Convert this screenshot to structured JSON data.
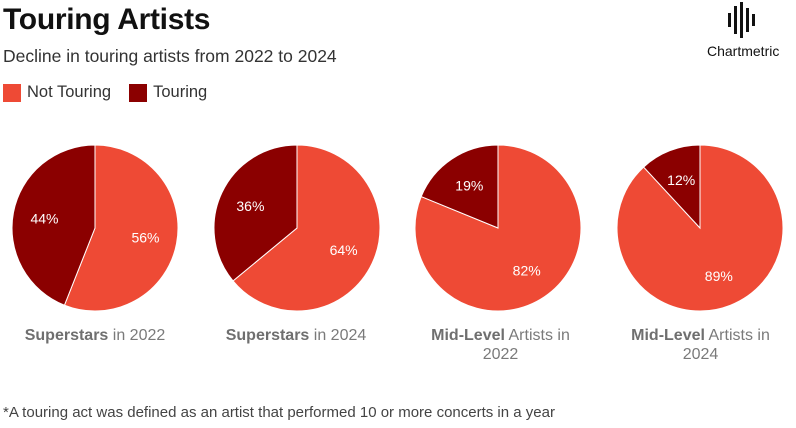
{
  "header": {
    "title": "Touring Artists",
    "subtitle": "Decline in touring artists from 2022 to 2024"
  },
  "legend": [
    {
      "label": "Not Touring",
      "color": "#ee4a35"
    },
    {
      "label": "Touring",
      "color": "#8b0000"
    }
  ],
  "logo": {
    "text": "Chartmetric",
    "icon": "waveform-icon"
  },
  "chart_data": [
    {
      "type": "pie",
      "caption_bold": "Superstars",
      "caption_rest": " in 2022",
      "slices": [
        {
          "label": "Not Touring",
          "value": 56,
          "text": "56%"
        },
        {
          "label": "Touring",
          "value": 44,
          "text": "44%"
        }
      ]
    },
    {
      "type": "pie",
      "caption_bold": "Superstars",
      "caption_rest": " in 2024",
      "slices": [
        {
          "label": "Not Touring",
          "value": 64,
          "text": "64%"
        },
        {
          "label": "Touring",
          "value": 36,
          "text": "36%"
        }
      ]
    },
    {
      "type": "pie",
      "caption_bold": "Mid-Level",
      "caption_rest": " Artists in 2022",
      "slices": [
        {
          "label": "Not Touring",
          "value": 82,
          "text": "82%"
        },
        {
          "label": "Touring",
          "value": 19,
          "text": "19%"
        }
      ]
    },
    {
      "type": "pie",
      "caption_bold": "Mid-Level",
      "caption_rest": " Artists in 2024",
      "slices": [
        {
          "label": "Not Touring",
          "value": 89,
          "text": "89%"
        },
        {
          "label": "Touring",
          "value": 12,
          "text": "12%"
        }
      ]
    }
  ],
  "footnote": "*A touring act was defined as an artist that performed 10 or more concerts in a year"
}
